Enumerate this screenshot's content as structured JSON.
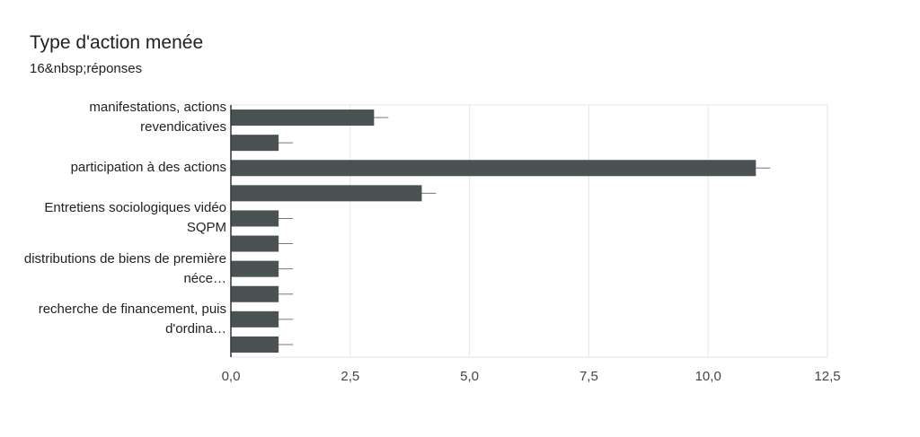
{
  "chart_data": {
    "type": "bar",
    "orientation": "horizontal",
    "title": "Type d'action menée",
    "subtitle": "16&nbsp;réponses",
    "categories": [
      "manifestations, actions revendicatives",
      null,
      "participation à des actions",
      null,
      "Entretiens sociologiques vidéo SQPM",
      null,
      "distributions de biens de première néce…",
      null,
      "recherche de financement, puis d'ordina…",
      null
    ],
    "values": [
      3,
      1,
      11,
      4,
      1,
      1,
      1,
      1,
      1,
      1
    ],
    "color": "#4b5254",
    "xlim": [
      0,
      12.5
    ],
    "xticks": [
      {
        "value": 0,
        "label": "0,0"
      },
      {
        "value": 2.5,
        "label": "2,5"
      },
      {
        "value": 5,
        "label": "5,0"
      },
      {
        "value": 7.5,
        "label": "7,5"
      },
      {
        "value": 10,
        "label": "10,0"
      },
      {
        "value": 12.5,
        "label": "12,5"
      }
    ],
    "grid": true
  }
}
